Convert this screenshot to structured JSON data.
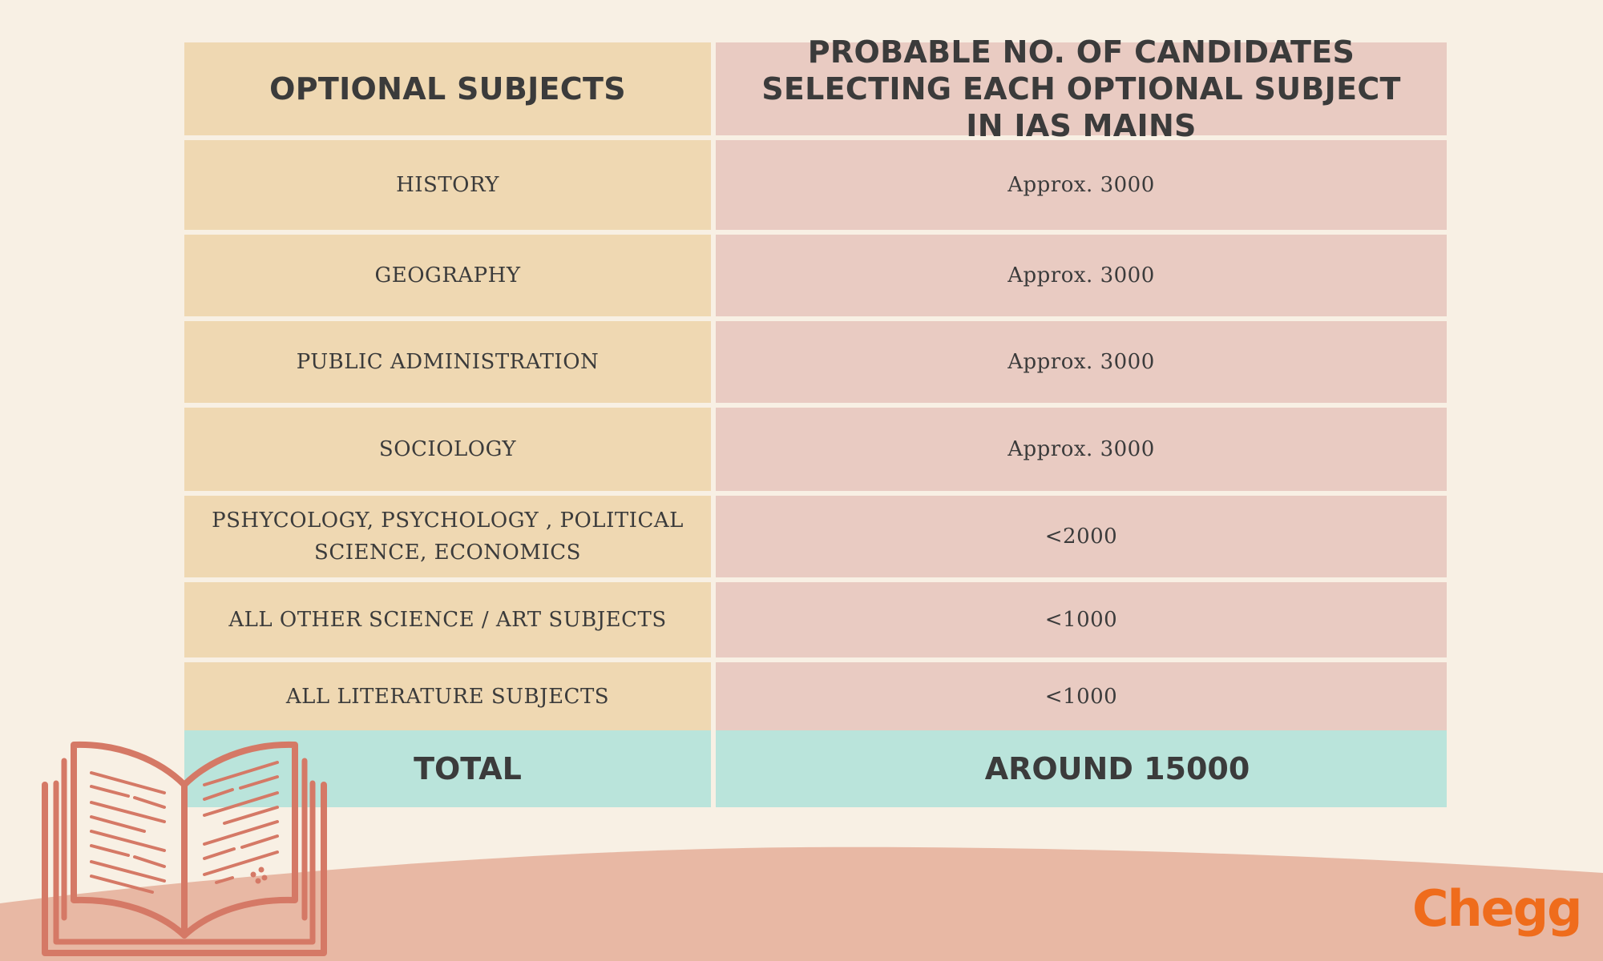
{
  "table": {
    "headers": [
      "OPTIONAL SUBJECTS",
      "PROBABLE NO. OF CANDIDATES SELECTING EACH OPTIONAL SUBJECT IN IAS MAINS"
    ],
    "rows": [
      {
        "subject": "HISTORY",
        "count": "Approx. 3000"
      },
      {
        "subject": "GEOGRAPHY",
        "count": "Approx. 3000"
      },
      {
        "subject": "PUBLIC ADMINISTRATION",
        "count": "Approx. 3000"
      },
      {
        "subject": "SOCIOLOGY",
        "count": "Approx. 3000"
      },
      {
        "subject": "PSHYCOLOGY, PSYCHOLOGY , POLITICAL SCIENCE, ECONOMICS",
        "count": "<2000"
      },
      {
        "subject": "ALL OTHER SCIENCE / ART SUBJECTS",
        "count": "<1000"
      },
      {
        "subject": "ALL LITERATURE SUBJECTS",
        "count": "<1000"
      }
    ],
    "total": {
      "label": "TOTAL",
      "value": "AROUND 15000"
    }
  },
  "brand": {
    "logo_text": "Chegg",
    "color": "#ef6c1c"
  },
  "decoration": {
    "icon": "open-book-icon"
  },
  "colors": {
    "background": "#f8f0e4",
    "left_column": "#efd8b2",
    "right_column": "#e9cbc2",
    "total_row": "#bae4db",
    "hill": "#e8b8a4",
    "book_stroke": "#d57966"
  }
}
